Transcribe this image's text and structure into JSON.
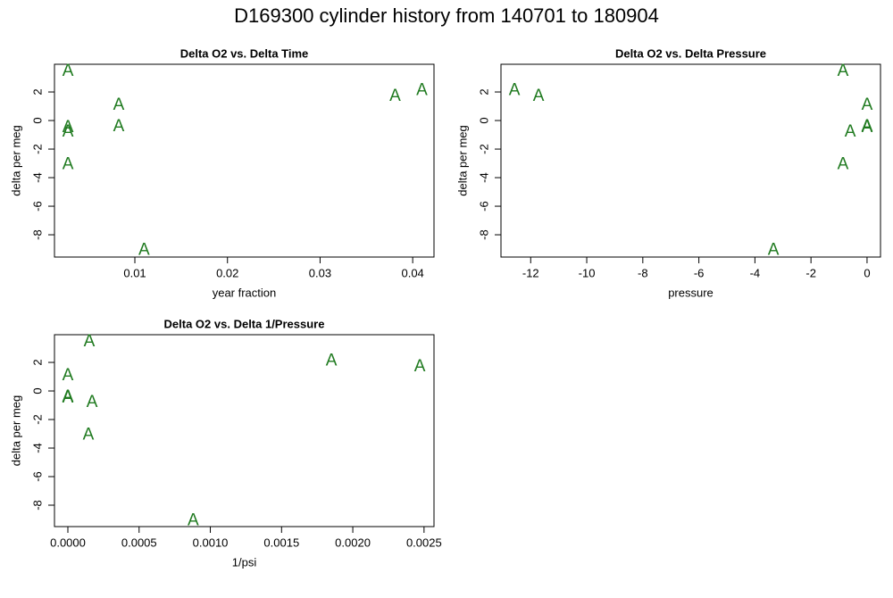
{
  "title": "D169300   cylinder history from  140701  to  180904",
  "chart_data": [
    {
      "type": "scatter",
      "title": "Delta O2 vs. Delta Time",
      "x_label": "year fraction",
      "y_label": "delta per meg",
      "marker": "A",
      "color": "#1f7a1f",
      "x": [
        0.00277,
        0.00277,
        0.00277,
        0.00277,
        0.00826,
        0.00826,
        0.0381,
        0.041,
        0.011
      ],
      "values": [
        3.44,
        -0.5,
        -0.8,
        -3.1,
        1.06,
        -0.44,
        1.69,
        2.1,
        -9.1
      ],
      "xlim": [
        0.00132,
        0.0423
      ],
      "ylim": [
        -9.56,
        3.94
      ],
      "xticks": [
        0.01,
        0.02,
        0.03,
        0.04
      ],
      "yticks": [
        -8,
        -6,
        -4,
        -2,
        0,
        2
      ]
    },
    {
      "type": "scatter",
      "title": "Delta O2 vs. Delta Pressure",
      "x_label": "pressure",
      "y_label": "delta per meg",
      "marker": "A",
      "color": "#1f7a1f",
      "x": [
        -12.58,
        -11.72,
        -0.86,
        0,
        0,
        0,
        -0.6,
        -0.86,
        -3.34
      ],
      "values": [
        2.1,
        1.69,
        3.44,
        1.06,
        -0.44,
        -0.5,
        -0.8,
        -3.1,
        -9.1
      ],
      "xlim": [
        -13.06,
        0.48
      ],
      "ylim": [
        -9.56,
        3.94
      ],
      "xticks": [
        -12,
        -10,
        -8,
        -6,
        -4,
        -2,
        0
      ],
      "yticks": [
        -8,
        -6,
        -4,
        -2,
        0,
        2
      ]
    },
    {
      "type": "scatter",
      "title": "Delta O2 vs. Delta 1/Pressure",
      "x_label": "1/psi",
      "y_label": "delta per meg",
      "marker": "A",
      "color": "#1f7a1f",
      "x": [
        0.00015,
        0,
        0,
        0,
        0.00017,
        0.000144,
        0.00185,
        0.00247,
        0.00088
      ],
      "values": [
        3.44,
        1.06,
        -0.44,
        -0.5,
        -0.8,
        -3.1,
        2.1,
        1.69,
        -9.1
      ],
      "xlim": [
        -9.4e-05,
        0.00257
      ],
      "ylim": [
        -9.5,
        3.94
      ],
      "xticks": [
        {
          "value": 0,
          "label": "0.0000"
        },
        {
          "value": 0.0005,
          "label": "0.0005"
        },
        {
          "value": 0.001,
          "label": "0.0010"
        },
        {
          "value": 0.0015,
          "label": "0.0015"
        },
        {
          "value": 0.002,
          "label": "0.0020"
        },
        {
          "value": 0.0025,
          "label": "0.0025"
        }
      ],
      "yticks": [
        -8,
        -6,
        -4,
        -2,
        0,
        2
      ]
    }
  ]
}
